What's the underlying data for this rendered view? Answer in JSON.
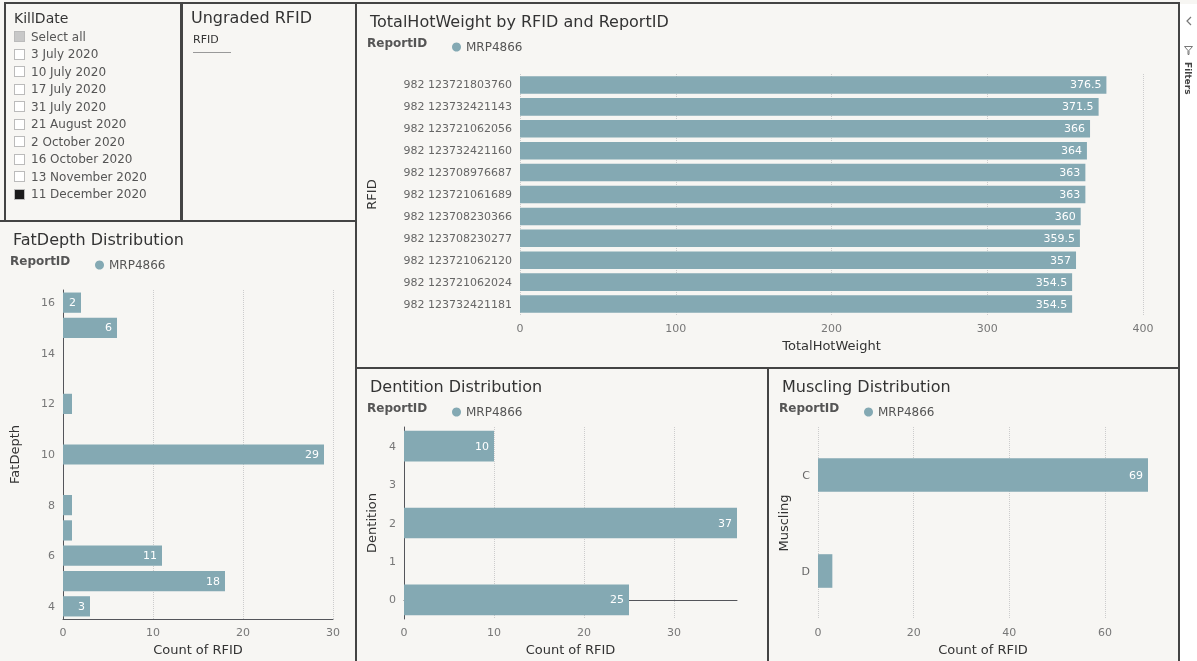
{
  "chart_data": [
    {
      "type": "other",
      "title": "KillDate",
      "categories": [
        "Select all",
        "3 July 2020",
        "10 July 2020",
        "17 July 2020",
        "31 July 2020",
        "21 August 2020",
        "2 October 2020",
        "16 October 2020",
        "13 November 2020",
        "11 December 2020"
      ],
      "colors": [
        "#c8c8c8",
        "#ffffff",
        "#ffffff",
        "#ffffff",
        "#ffffff",
        "#ffffff",
        "#ffffff",
        "#ffffff",
        "#ffffff",
        "#1a1a1a"
      ]
    },
    {
      "type": "other",
      "title": "Ungraded RFID",
      "annotations": [
        "RFID"
      ]
    },
    {
      "type": "bar",
      "orientation": "horizontal",
      "title": "TotalHotWeight by RFID and ReportID",
      "legend_title": "ReportID",
      "legend": "top left",
      "xlabel": "TotalHotWeight",
      "ylabel": "RFID",
      "grid": "x",
      "data_labels": true,
      "categories": [
        "982 123721803760",
        "982 123732421143",
        "982 123721062056",
        "982 123732421160",
        "982 123708976687",
        "982 123721061689",
        "982 123708230366",
        "982 123708230277",
        "982 123721062120",
        "982 123721062024",
        "982 123732421181"
      ],
      "series": [
        {
          "name": "MRP4866",
          "color": "#84a9b3",
          "values": [
            376.5,
            371.5,
            366,
            364,
            363,
            363,
            360,
            359.5,
            357,
            354.5,
            354.5
          ]
        }
      ],
      "xlim": [
        0,
        400
      ],
      "xticks": [
        0,
        100,
        200,
        300,
        400
      ]
    },
    {
      "type": "bar",
      "orientation": "horizontal",
      "title": "FatDepth Distribution",
      "legend_title": "ReportID",
      "legend": "top left",
      "xlabel": "Count of RFID",
      "ylabel": "FatDepth",
      "grid": "x",
      "x": [
        16,
        15,
        12,
        10,
        8,
        7,
        6,
        5,
        4
      ],
      "series": [
        {
          "name": "MRP4866",
          "color": "#84a9b3",
          "values": [
            2,
            6,
            1,
            29,
            1,
            1,
            11,
            18,
            3
          ],
          "value_labels": [
            "2",
            "6",
            null,
            "29",
            null,
            null,
            "11",
            "18",
            "3"
          ]
        }
      ],
      "xlim": [
        0,
        30
      ],
      "xticks": [
        0,
        10,
        20,
        30
      ],
      "ylim": [
        3.5,
        16.5
      ],
      "yticks": [
        4,
        6,
        8,
        10,
        12,
        14,
        16
      ]
    },
    {
      "type": "bar",
      "orientation": "horizontal",
      "title": "Dentition Distribution",
      "legend_title": "ReportID",
      "legend": "top left",
      "xlabel": "Count of RFID",
      "ylabel": "Dentition",
      "grid": "x",
      "data_labels": true,
      "x": [
        4,
        2,
        0
      ],
      "series": [
        {
          "name": "MRP4866",
          "color": "#84a9b3",
          "values": [
            10,
            37,
            25
          ]
        }
      ],
      "xlim": [
        0,
        37
      ],
      "xticks": [
        0,
        10,
        20,
        30
      ],
      "ylim": [
        -0.5,
        4.5
      ],
      "yticks": [
        0,
        1,
        2,
        3,
        4
      ]
    },
    {
      "type": "bar",
      "orientation": "horizontal",
      "title": "Muscling Distribution",
      "legend_title": "ReportID",
      "legend": "top left",
      "xlabel": "Count of RFID",
      "ylabel": "Muscling",
      "grid": "x",
      "categories": [
        "C",
        "D"
      ],
      "series": [
        {
          "name": "MRP4866",
          "color": "#84a9b3",
          "values": [
            69,
            3
          ],
          "value_labels": [
            "69",
            null
          ]
        }
      ],
      "xlim": [
        0,
        69
      ],
      "xticks": [
        0,
        20,
        40,
        60
      ]
    },
    {
      "type": "other",
      "title": "Filters"
    }
  ]
}
